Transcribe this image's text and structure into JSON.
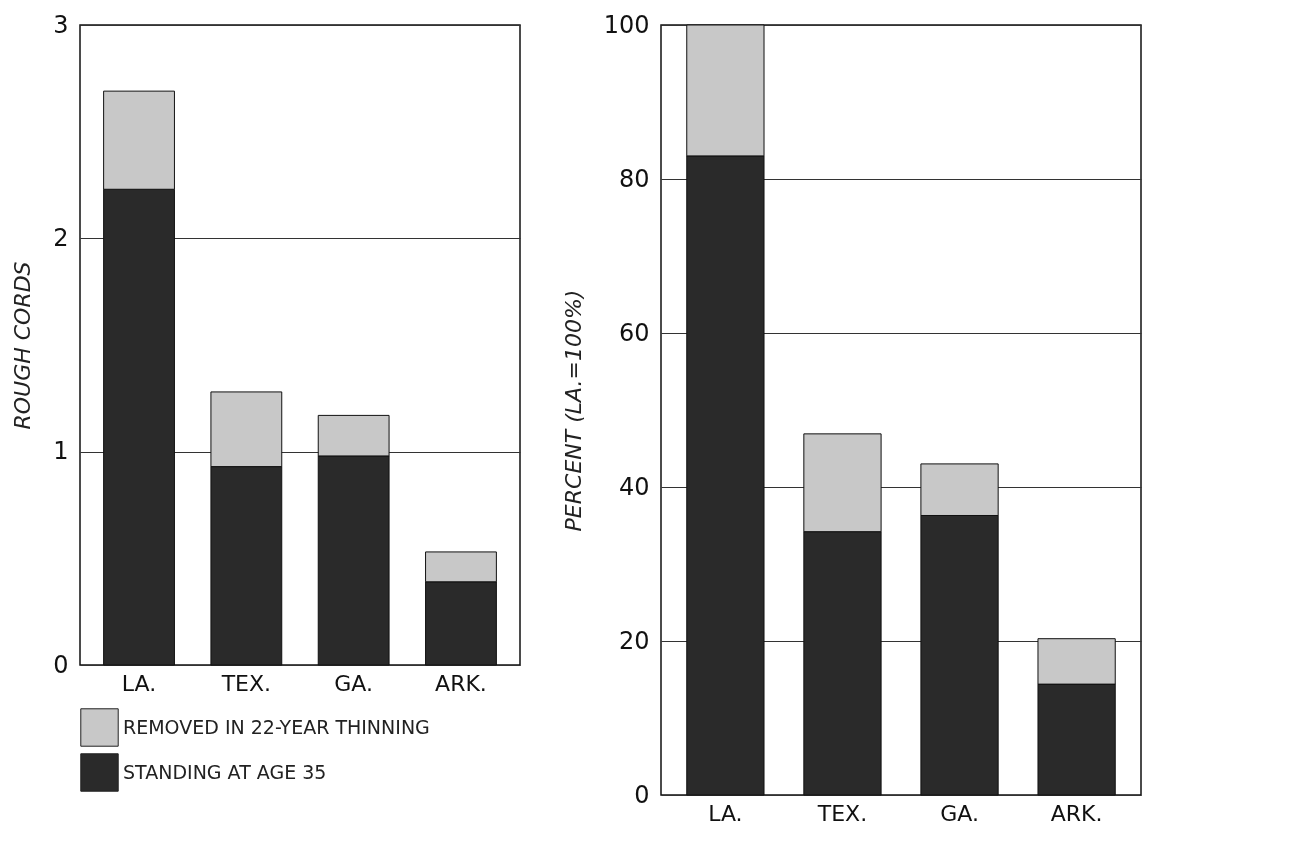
{
  "chart_data": [
    {
      "type": "bar",
      "stacked": true,
      "categories": [
        "LA.",
        "TEX.",
        "GA.",
        "ARK."
      ],
      "ylabel": "ROUGH CORDS",
      "ylim": [
        0,
        3
      ],
      "yticks": [
        0,
        1,
        2,
        3
      ],
      "grid": "y",
      "legend": "bottom left",
      "series": [
        {
          "name": "STANDING AT AGE 35",
          "color": "#2a2a2a",
          "values": [
            2.23,
            0.93,
            0.98,
            0.39
          ]
        },
        {
          "name": "REMOVED IN 22-YEAR THINNING",
          "color": "#c8c8c8",
          "values": [
            0.46,
            0.35,
            0.19,
            0.14
          ]
        }
      ]
    },
    {
      "type": "bar",
      "stacked": true,
      "categories": [
        "LA.",
        "TEX.",
        "GA.",
        "ARK."
      ],
      "ylabel": "PERCENT (LA.=100%)",
      "ylim": [
        0,
        100
      ],
      "yticks": [
        0,
        20,
        40,
        60,
        80,
        100
      ],
      "grid": "y",
      "series": [
        {
          "color": "#2a2a2a",
          "values": [
            83,
            34.2,
            36.3,
            14.4
          ]
        },
        {
          "color": "#c8c8c8",
          "values": [
            17,
            12.7,
            6.7,
            5.9
          ]
        }
      ]
    }
  ]
}
